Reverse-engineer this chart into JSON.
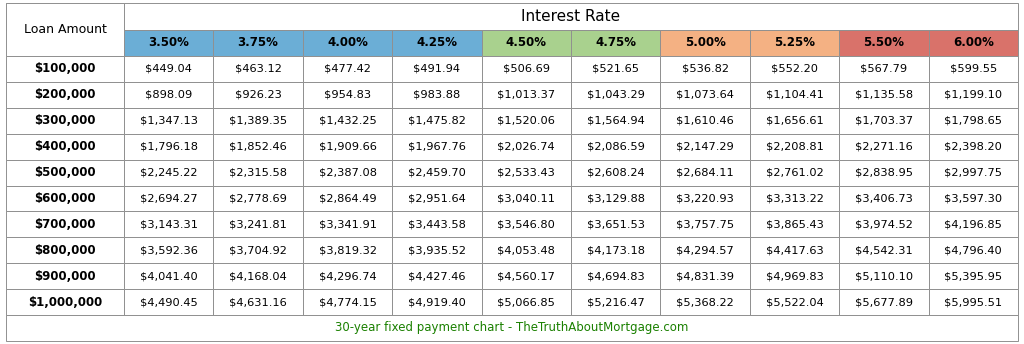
{
  "title": "Interest Rate",
  "footer": "30-year fixed payment chart - TheTruthAboutMortgage.com",
  "footer_color": "#1A8000",
  "col_header_label": "Loan Amount",
  "col_headers": [
    "3.50%",
    "3.75%",
    "4.00%",
    "4.25%",
    "4.50%",
    "4.75%",
    "5.00%",
    "5.25%",
    "5.50%",
    "6.00%"
  ],
  "col_header_colors": [
    "#6BAED6",
    "#6BAED6",
    "#6BAED6",
    "#6BAED6",
    "#A9D18E",
    "#A9D18E",
    "#F4B183",
    "#F4B183",
    "#D9726A",
    "#D9726A"
  ],
  "row_labels": [
    "$100,000",
    "$200,000",
    "$300,000",
    "$400,000",
    "$500,000",
    "$600,000",
    "$700,000",
    "$800,000",
    "$900,000",
    "$1,000,000"
  ],
  "data": [
    [
      "$449.04",
      "$463.12",
      "$477.42",
      "$491.94",
      "$506.69",
      "$521.65",
      "$536.82",
      "$552.20",
      "$567.79",
      "$599.55"
    ],
    [
      "$898.09",
      "$926.23",
      "$954.83",
      "$983.88",
      "$1,013.37",
      "$1,043.29",
      "$1,073.64",
      "$1,104.41",
      "$1,135.58",
      "$1,199.10"
    ],
    [
      "$1,347.13",
      "$1,389.35",
      "$1,432.25",
      "$1,475.82",
      "$1,520.06",
      "$1,564.94",
      "$1,610.46",
      "$1,656.61",
      "$1,703.37",
      "$1,798.65"
    ],
    [
      "$1,796.18",
      "$1,852.46",
      "$1,909.66",
      "$1,967.76",
      "$2,026.74",
      "$2,086.59",
      "$2,147.29",
      "$2,208.81",
      "$2,271.16",
      "$2,398.20"
    ],
    [
      "$2,245.22",
      "$2,315.58",
      "$2,387.08",
      "$2,459.70",
      "$2,533.43",
      "$2,608.24",
      "$2,684.11",
      "$2,761.02",
      "$2,838.95",
      "$2,997.75"
    ],
    [
      "$2,694.27",
      "$2,778.69",
      "$2,864.49",
      "$2,951.64",
      "$3,040.11",
      "$3,129.88",
      "$3,220.93",
      "$3,313.22",
      "$3,406.73",
      "$3,597.30"
    ],
    [
      "$3,143.31",
      "$3,241.81",
      "$3,341.91",
      "$3,443.58",
      "$3,546.80",
      "$3,651.53",
      "$3,757.75",
      "$3,865.43",
      "$3,974.52",
      "$4,196.85"
    ],
    [
      "$3,592.36",
      "$3,704.92",
      "$3,819.32",
      "$3,935.52",
      "$4,053.48",
      "$4,173.18",
      "$4,294.57",
      "$4,417.63",
      "$4,542.31",
      "$4,796.40"
    ],
    [
      "$4,041.40",
      "$4,168.04",
      "$4,296.74",
      "$4,427.46",
      "$4,560.17",
      "$4,694.83",
      "$4,831.39",
      "$4,969.83",
      "$5,110.10",
      "$5,395.95"
    ],
    [
      "$4,490.45",
      "$4,631.16",
      "$4,774.15",
      "$4,919.40",
      "$5,066.85",
      "$5,216.47",
      "$5,368.22",
      "$5,522.04",
      "$5,677.89",
      "$5,995.51"
    ]
  ],
  "bg_color": "#FFFFFF",
  "border_color": "#808080",
  "n_rows": 10,
  "n_cols": 10,
  "figw": 10.24,
  "figh": 3.44,
  "dpi": 100
}
